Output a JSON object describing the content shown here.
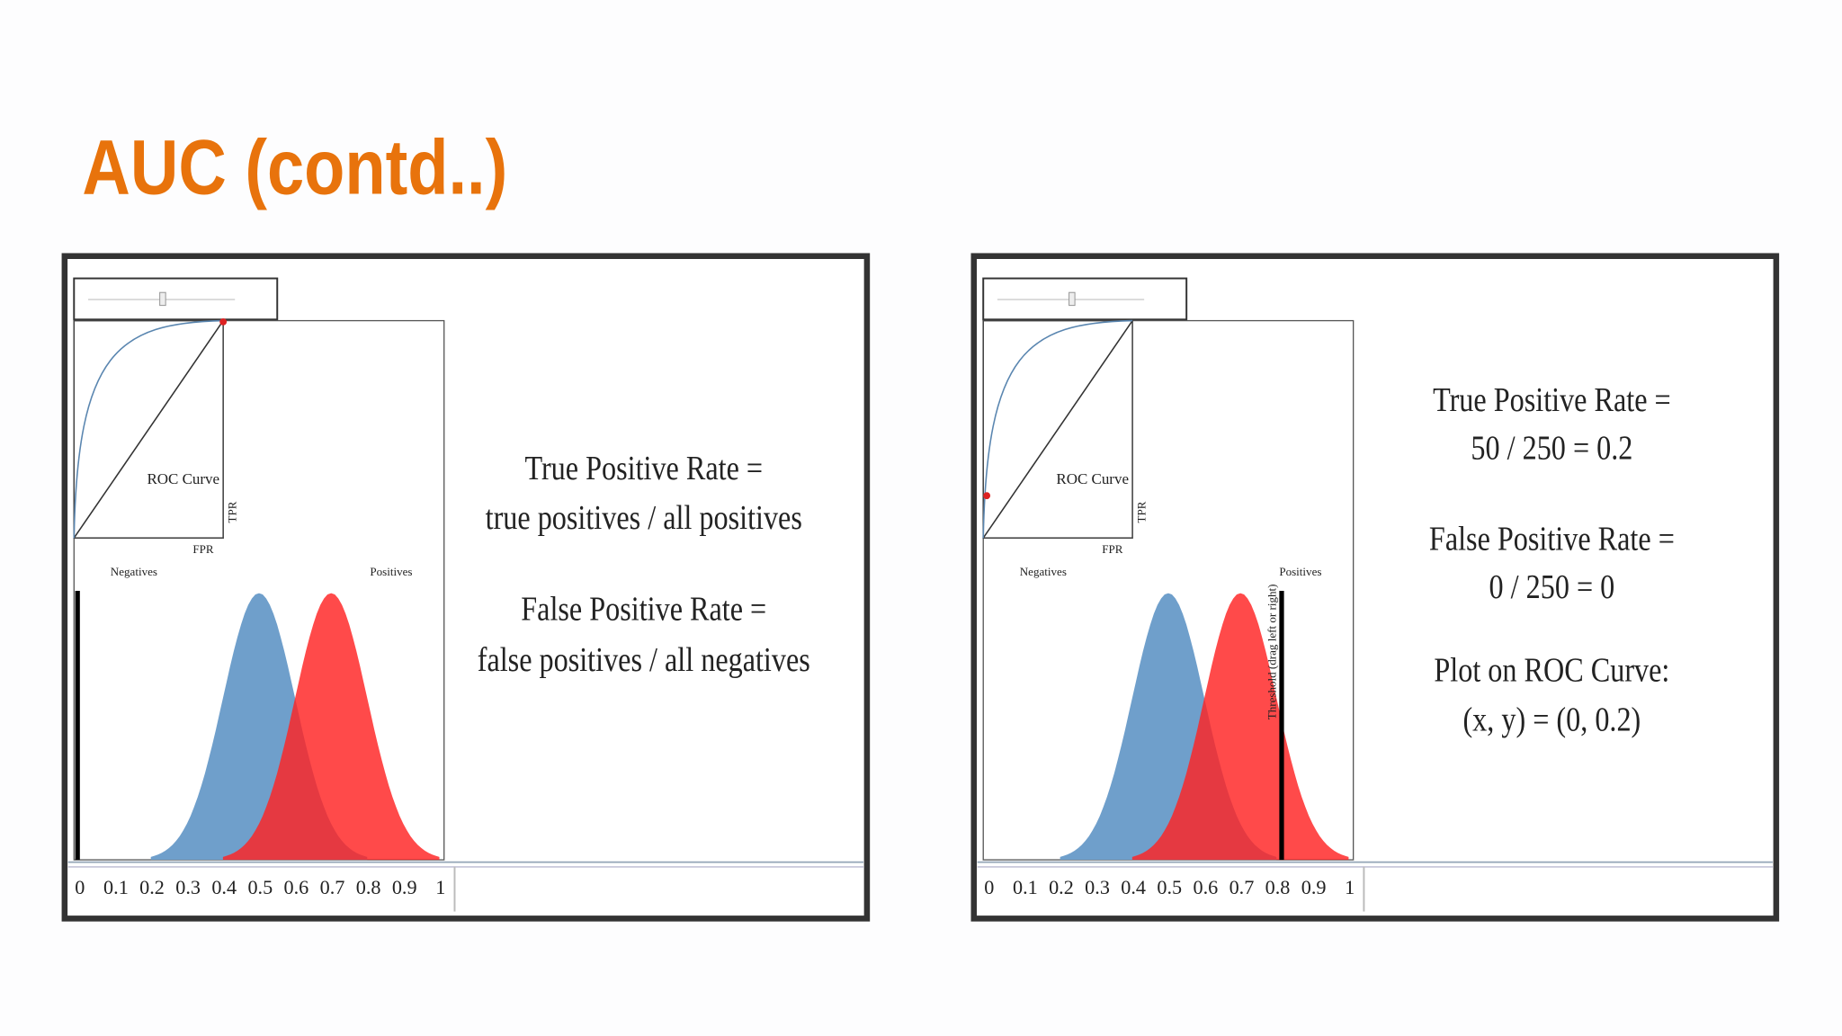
{
  "title": "AUC (contd..)",
  "panels": [
    {
      "roc_label": "ROC Curve",
      "tpr_label": "TPR",
      "fpr_label": "FPR",
      "negatives_label": "Negatives",
      "positives_label": "Positives",
      "axis_labels": [
        "0",
        "0.1",
        "0.2",
        "0.3",
        "0.4",
        "0.5",
        "0.6",
        "0.7",
        "0.8",
        "0.9",
        "1"
      ],
      "lines": [
        "True Positive Rate =",
        "true positives / all positives",
        "False Positive Rate =",
        "false positives / all negatives"
      ]
    },
    {
      "roc_label": "ROC Curve",
      "tpr_label": "TPR",
      "fpr_label": "FPR",
      "negatives_label": "Negatives",
      "positives_label": "Positives",
      "threshold_label": "Threshold (drag left or right)",
      "axis_labels": [
        "0",
        "0.1",
        "0.2",
        "0.3",
        "0.4",
        "0.5",
        "0.6",
        "0.7",
        "0.8",
        "0.9",
        "1"
      ],
      "lines": [
        "True Positive Rate =",
        "50 / 250 = 0.2",
        "False Positive Rate =",
        "0 / 250 = 0",
        "Plot on ROC Curve:",
        "(x, y) = (0, 0.2)"
      ]
    }
  ]
}
